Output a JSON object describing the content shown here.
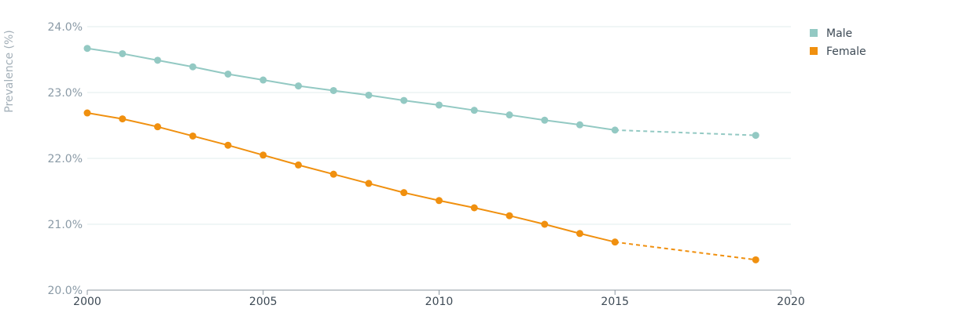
{
  "chart_data": {
    "type": "line",
    "title": "",
    "xlabel": "",
    "ylabel": "Prevalence (%)",
    "xlim": [
      2000,
      2020
    ],
    "ylim": [
      20.0,
      24.0
    ],
    "x_ticks": [
      "2000",
      "2005",
      "2010",
      "2015",
      "2020"
    ],
    "y_ticks": [
      "20.0%",
      "21.0%",
      "22.0%",
      "23.0%",
      "24.0%"
    ],
    "grid": true,
    "legend_position": "top-right",
    "series": [
      {
        "name": "Male",
        "color": "#93c9c3",
        "points": [
          {
            "x": 2000,
            "y": 23.67
          },
          {
            "x": 2001,
            "y": 23.59
          },
          {
            "x": 2002,
            "y": 23.49
          },
          {
            "x": 2003,
            "y": 23.39
          },
          {
            "x": 2004,
            "y": 23.28
          },
          {
            "x": 2005,
            "y": 23.19
          },
          {
            "x": 2006,
            "y": 23.1
          },
          {
            "x": 2007,
            "y": 23.03
          },
          {
            "x": 2008,
            "y": 22.96
          },
          {
            "x": 2009,
            "y": 22.88
          },
          {
            "x": 2010,
            "y": 22.81
          },
          {
            "x": 2011,
            "y": 22.73
          },
          {
            "x": 2012,
            "y": 22.66
          },
          {
            "x": 2013,
            "y": 22.58
          },
          {
            "x": 2014,
            "y": 22.51
          },
          {
            "x": 2015,
            "y": 22.43
          }
        ],
        "projection": [
          {
            "x": 2015,
            "y": 22.43
          },
          {
            "x": 2019,
            "y": 22.35
          }
        ]
      },
      {
        "name": "Female",
        "color": "#f0900f",
        "points": [
          {
            "x": 2000,
            "y": 22.69
          },
          {
            "x": 2001,
            "y": 22.6
          },
          {
            "x": 2002,
            "y": 22.48
          },
          {
            "x": 2003,
            "y": 22.34
          },
          {
            "x": 2004,
            "y": 22.2
          },
          {
            "x": 2005,
            "y": 22.05
          },
          {
            "x": 2006,
            "y": 21.9
          },
          {
            "x": 2007,
            "y": 21.76
          },
          {
            "x": 2008,
            "y": 21.62
          },
          {
            "x": 2009,
            "y": 21.48
          },
          {
            "x": 2010,
            "y": 21.36
          },
          {
            "x": 2011,
            "y": 21.25
          },
          {
            "x": 2012,
            "y": 21.13
          },
          {
            "x": 2013,
            "y": 21.0
          },
          {
            "x": 2014,
            "y": 20.86
          },
          {
            "x": 2015,
            "y": 20.73
          }
        ],
        "projection": [
          {
            "x": 2015,
            "y": 20.73
          },
          {
            "x": 2019,
            "y": 20.46
          }
        ]
      }
    ]
  }
}
